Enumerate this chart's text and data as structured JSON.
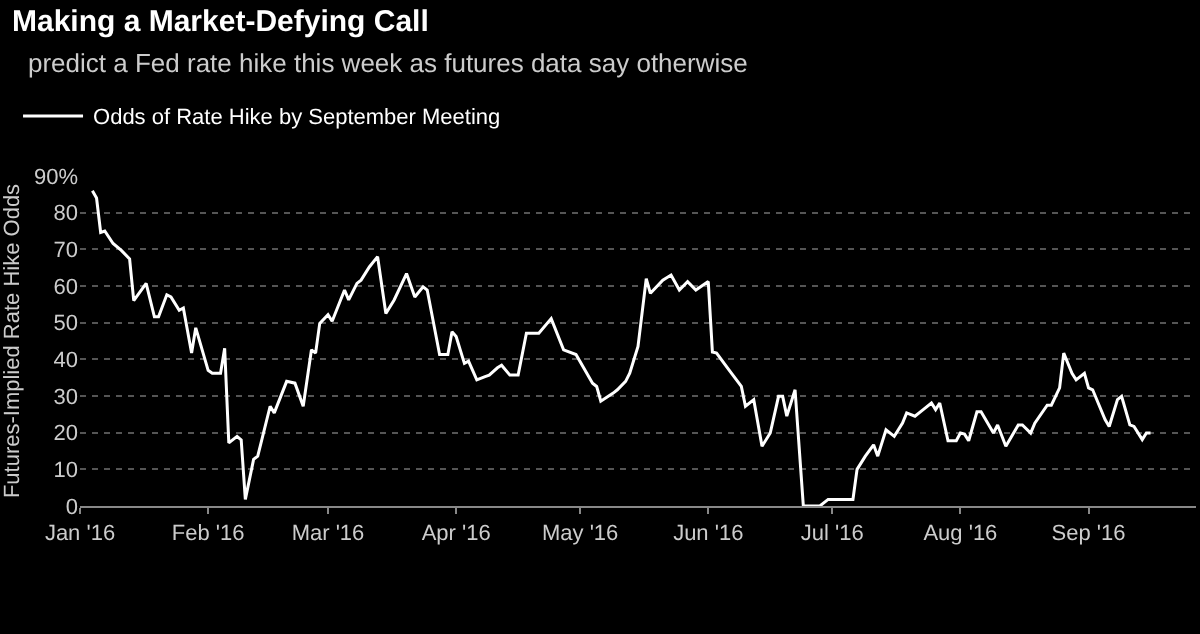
{
  "chart_data": {
    "type": "line",
    "title": "Making a Market-Defying Call",
    "subtitle": "predict a Fed rate hike this week as futures data say otherwise",
    "ylabel": "Futures-Implied Rate Hike Odds",
    "x": [
      "2016-01-04",
      "2016-01-05",
      "2016-01-06",
      "2016-01-07",
      "2016-01-09",
      "2016-01-11",
      "2016-01-13",
      "2016-01-14",
      "2016-01-17",
      "2016-01-19",
      "2016-01-20",
      "2016-01-22",
      "2016-01-23",
      "2016-01-25",
      "2016-01-26",
      "2016-01-28",
      "2016-01-29",
      "2016-02-01",
      "2016-02-02",
      "2016-02-04",
      "2016-02-05",
      "2016-02-06",
      "2016-02-08",
      "2016-02-09",
      "2016-02-10",
      "2016-02-12",
      "2016-02-13",
      "2016-02-16",
      "2016-02-17",
      "2016-02-20",
      "2016-02-22",
      "2016-02-24",
      "2016-02-26",
      "2016-02-27",
      "2016-02-28",
      "2016-03-01",
      "2016-03-02",
      "2016-03-05",
      "2016-03-06",
      "2016-03-08",
      "2016-03-09",
      "2016-03-11",
      "2016-03-13",
      "2016-03-15",
      "2016-03-17",
      "2016-03-20",
      "2016-03-22",
      "2016-03-24",
      "2016-03-25",
      "2016-03-28",
      "2016-03-30",
      "2016-03-31",
      "2016-04-01",
      "2016-04-03",
      "2016-04-04",
      "2016-04-06",
      "2016-04-08",
      "2016-04-09",
      "2016-04-11",
      "2016-04-12",
      "2016-04-14",
      "2016-04-16",
      "2016-04-18",
      "2016-04-21",
      "2016-04-24",
      "2016-04-27",
      "2016-04-30",
      "2016-05-04",
      "2016-05-05",
      "2016-05-06",
      "2016-05-09",
      "2016-05-10",
      "2016-05-12",
      "2016-05-13",
      "2016-05-15",
      "2016-05-17",
      "2016-05-18",
      "2016-05-21",
      "2016-05-23",
      "2016-05-25",
      "2016-05-27",
      "2016-05-29",
      "2016-06-01",
      "2016-06-02",
      "2016-06-03",
      "2016-06-06",
      "2016-06-09",
      "2016-06-10",
      "2016-06-12",
      "2016-06-14",
      "2016-06-16",
      "2016-06-18",
      "2016-06-19",
      "2016-06-20",
      "2016-06-22",
      "2016-06-24",
      "2016-06-28",
      "2016-06-30",
      "2016-07-06",
      "2016-07-07",
      "2016-07-09",
      "2016-07-11",
      "2016-07-12",
      "2016-07-14",
      "2016-07-16",
      "2016-07-18",
      "2016-07-19",
      "2016-07-21",
      "2016-07-23",
      "2016-07-25",
      "2016-07-26",
      "2016-07-27",
      "2016-07-29",
      "2016-07-31",
      "2016-08-01",
      "2016-08-02",
      "2016-08-03",
      "2016-08-05",
      "2016-08-06",
      "2016-08-09",
      "2016-08-10",
      "2016-08-12",
      "2016-08-15",
      "2016-08-16",
      "2016-08-18",
      "2016-08-19",
      "2016-08-22",
      "2016-08-23",
      "2016-08-25",
      "2016-08-26",
      "2016-08-28",
      "2016-08-29",
      "2016-08-31",
      "2016-09-01",
      "2016-09-02",
      "2016-09-05",
      "2016-09-06",
      "2016-09-08",
      "2016-09-09",
      "2016-09-11",
      "2016-09-12",
      "2016-09-14",
      "2016-09-15",
      "2016-09-16"
    ],
    "series": [
      {
        "name": "Odds of Rate Hike by September Meeting",
        "color": "#ffffff",
        "values": [
          86,
          84,
          74.6,
          75,
          71.6,
          69.7,
          67.4,
          56,
          60.7,
          51.6,
          51.6,
          57.6,
          57,
          53.4,
          54,
          41.7,
          48.6,
          37,
          36.2,
          36.2,
          43,
          17.2,
          19,
          18,
          1.8,
          12.7,
          13.6,
          27.2,
          25.4,
          34,
          33.5,
          27.2,
          42.6,
          41.7,
          49.8,
          52.2,
          50.4,
          58.9,
          56.2,
          60.7,
          61.6,
          65.2,
          68,
          52.5,
          56.2,
          63.4,
          57,
          59.8,
          58.9,
          41.3,
          41.3,
          47.5,
          46.2,
          38.9,
          39.5,
          34.4,
          35.3,
          35.7,
          37.7,
          38.4,
          35.7,
          35.7,
          47.1,
          47.1,
          51.1,
          42.6,
          41.3,
          33.5,
          32.6,
          28.6,
          30.8,
          31.7,
          34,
          36.2,
          43.5,
          62,
          58,
          61.6,
          63,
          58.9,
          61.2,
          58.9,
          61.2,
          42,
          41.7,
          37.1,
          32.6,
          27.2,
          29,
          16.3,
          19.9,
          29.9,
          29.9,
          24.5,
          31.7,
          0,
          0,
          1.8,
          1.8,
          10,
          13.6,
          16.7,
          13.6,
          20.8,
          19,
          22.6,
          25.4,
          24.5,
          26.3,
          28.1,
          26.3,
          28.1,
          17.8,
          17.8,
          19.9,
          19.6,
          17.8,
          25.7,
          25.7,
          19.9,
          22.1,
          16.3,
          22.1,
          22.1,
          19.9,
          22.6,
          27.5,
          27.5,
          32.2,
          41.7,
          36.2,
          34.4,
          36.2,
          32.2,
          31.7,
          23.6,
          21.7,
          29,
          29.9,
          22.1,
          21.7,
          18.1,
          19.9,
          19.9
        ]
      }
    ],
    "xlim": [
      "2016-01-01",
      "2016-09-27"
    ],
    "xticks": [
      {
        "value": "2016-01-01",
        "label": "Jan '16"
      },
      {
        "value": "2016-02-01",
        "label": "Feb '16"
      },
      {
        "value": "2016-03-01",
        "label": "Mar '16"
      },
      {
        "value": "2016-04-01",
        "label": "Apr '16"
      },
      {
        "value": "2016-05-01",
        "label": "May '16"
      },
      {
        "value": "2016-06-01",
        "label": "Jun '16"
      },
      {
        "value": "2016-07-01",
        "label": "Jul '16"
      },
      {
        "value": "2016-08-01",
        "label": "Aug '16"
      },
      {
        "value": "2016-09-01",
        "label": "Sep '16"
      }
    ],
    "ylim": [
      0,
      90
    ],
    "yticks": [
      0,
      10,
      20,
      30,
      40,
      50,
      60,
      70,
      80,
      {
        "value": 90,
        "label": "90%"
      }
    ],
    "grid": "y",
    "legend": "top left",
    "marker": "none",
    "line_style": "solid"
  }
}
